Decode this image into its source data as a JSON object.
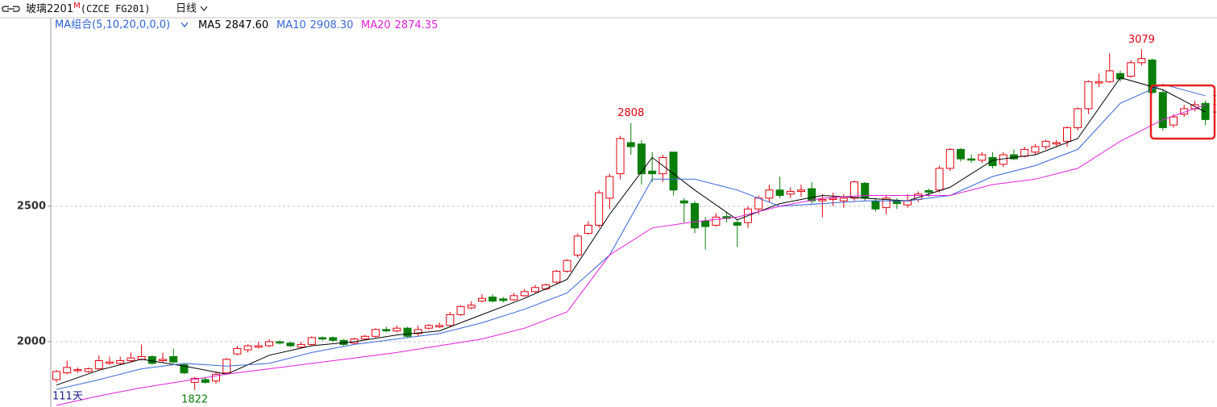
{
  "header": {
    "symbol": "玻璃2201",
    "badge": "M",
    "code": "(CZCE FG201)",
    "period": "日线"
  },
  "chart_data": {
    "type": "candlestick",
    "indicator": "MA组合(5,10,20,0,0,0)",
    "count_label": "111天",
    "open": [
      1860,
      1885,
      1893,
      1890,
      1900,
      1920,
      1920,
      1930,
      1935,
      1945,
      1930,
      1945,
      1915,
      1850,
      1860,
      1855,
      1885,
      1955,
      1970,
      1980,
      1985,
      2000,
      1995,
      1980,
      1990,
      2015,
      2015,
      2005,
      1995,
      2010,
      2020,
      2045,
      2040,
      2050,
      2030,
      2050,
      2055,
      2060,
      2100,
      2125,
      2150,
      2165,
      2158,
      2155,
      2170,
      2185,
      2195,
      2220,
      2260,
      2320,
      2400,
      2430,
      2530,
      2620,
      2735,
      2730,
      2630,
      2620,
      2700,
      2520,
      2510,
      2445,
      2430,
      2462,
      2440,
      2440,
      2490,
      2530,
      2560,
      2545,
      2555,
      2565,
      2520,
      2525,
      2520,
      2530,
      2585,
      2520,
      2495,
      2520,
      2505,
      2525,
      2558,
      2560,
      2640,
      2710,
      2675,
      2670,
      2680,
      2655,
      2690,
      2685,
      2700,
      2720,
      2730,
      2740,
      2790,
      2860,
      2955,
      2960,
      2990,
      2980,
      3030,
      3040,
      2920,
      2800,
      2840,
      2860,
      2880
    ],
    "high": [
      1895,
      1930,
      1905,
      1905,
      1950,
      1945,
      1945,
      1960,
      1990,
      1950,
      1960,
      1975,
      1920,
      1870,
      1870,
      1890,
      1940,
      1985,
      1990,
      2000,
      2010,
      2005,
      2000,
      2000,
      2020,
      2020,
      2020,
      2010,
      2015,
      2025,
      2050,
      2055,
      2060,
      2055,
      2060,
      2065,
      2070,
      2110,
      2135,
      2150,
      2175,
      2175,
      2165,
      2180,
      2195,
      2210,
      2215,
      2265,
      2305,
      2400,
      2445,
      2560,
      2620,
      2760,
      2808,
      2745,
      2700,
      2690,
      2700,
      2530,
      2520,
      2460,
      2475,
      2480,
      2450,
      2500,
      2540,
      2580,
      2610,
      2570,
      2580,
      2590,
      2545,
      2550,
      2545,
      2595,
      2590,
      2530,
      2540,
      2530,
      2545,
      2555,
      2565,
      2650,
      2715,
      2715,
      2690,
      2700,
      2700,
      2700,
      2710,
      2720,
      2730,
      2745,
      2745,
      2795,
      2865,
      2965,
      2990,
      3065,
      3000,
      3040,
      3079,
      3045,
      2930,
      2840,
      2875,
      2890,
      2890
    ],
    "low": [
      1850,
      1880,
      1885,
      1885,
      1895,
      1915,
      1915,
      1925,
      1930,
      1915,
      1925,
      1920,
      1880,
      1822,
      1845,
      1845,
      1880,
      1950,
      1960,
      1975,
      1980,
      1990,
      1980,
      1975,
      1985,
      2005,
      2000,
      1985,
      1990,
      2005,
      2015,
      2035,
      2035,
      2015,
      2020,
      2045,
      2050,
      2055,
      2095,
      2120,
      2145,
      2145,
      2145,
      2150,
      2165,
      2180,
      2190,
      2215,
      2255,
      2310,
      2395,
      2420,
      2490,
      2600,
      2690,
      2580,
      2590,
      2590,
      2540,
      2440,
      2400,
      2340,
      2425,
      2440,
      2350,
      2420,
      2470,
      2515,
      2530,
      2530,
      2535,
      2510,
      2460,
      2500,
      2495,
      2520,
      2520,
      2480,
      2470,
      2490,
      2495,
      2515,
      2535,
      2550,
      2630,
      2665,
      2660,
      2660,
      2640,
      2645,
      2670,
      2680,
      2690,
      2710,
      2720,
      2720,
      2780,
      2840,
      2940,
      2955,
      2960,
      2975,
      3020,
      2915,
      2780,
      2790,
      2830,
      2850,
      2800
    ],
    "close": [
      1890,
      1905,
      1897,
      1900,
      1930,
      1925,
      1930,
      1940,
      1945,
      1920,
      1935,
      1925,
      1885,
      1865,
      1850,
      1880,
      1935,
      1975,
      1985,
      1985,
      2000,
      1995,
      1985,
      1990,
      2015,
      2010,
      2005,
      1990,
      2010,
      2020,
      2045,
      2040,
      2050,
      2020,
      2045,
      2060,
      2060,
      2100,
      2130,
      2135,
      2160,
      2150,
      2152,
      2170,
      2185,
      2200,
      2210,
      2260,
      2300,
      2390,
      2430,
      2550,
      2610,
      2750,
      2720,
      2620,
      2620,
      2680,
      2560,
      2512,
      2420,
      2425,
      2460,
      2455,
      2430,
      2490,
      2530,
      2560,
      2540,
      2555,
      2560,
      2520,
      2525,
      2530,
      2530,
      2590,
      2530,
      2490,
      2530,
      2510,
      2520,
      2545,
      2552,
      2640,
      2710,
      2675,
      2670,
      2690,
      2650,
      2690,
      2675,
      2710,
      2720,
      2740,
      2735,
      2790,
      2860,
      2960,
      2960,
      3000,
      2970,
      3030,
      3045,
      2920,
      2790,
      2830,
      2860,
      2875,
      2820
    ],
    "up_color": "#e3000f",
    "down_color": "#0a7d0a",
    "series": [
      {
        "name": "MA5",
        "color": "#000000",
        "last": {
          "value": 2847.6,
          "label": "2847.60"
        },
        "x": [
          0,
          4,
          8,
          12,
          16,
          20,
          24,
          28,
          32,
          36,
          40,
          44,
          48,
          52,
          56,
          60,
          64,
          68,
          72,
          76,
          80,
          84,
          88,
          92,
          96,
          100,
          104,
          108
        ],
        "values": [
          1840,
          1895,
          1935,
          1910,
          1880,
          1950,
          1985,
          2000,
          2025,
          2040,
          2100,
          2160,
          2230,
          2470,
          2680,
          2560,
          2450,
          2510,
          2540,
          2530,
          2520,
          2570,
          2670,
          2690,
          2750,
          2975,
          2930,
          2848
        ]
      },
      {
        "name": "MA10",
        "color": "#3a66d6",
        "last": {
          "value": 2908.3,
          "label": "2908.30"
        },
        "x": [
          0,
          4,
          8,
          12,
          16,
          20,
          24,
          28,
          32,
          36,
          40,
          44,
          48,
          52,
          56,
          60,
          64,
          68,
          72,
          76,
          80,
          84,
          88,
          92,
          96,
          100,
          104,
          108
        ],
        "values": [
          1824,
          1860,
          1900,
          1920,
          1910,
          1920,
          1960,
          1990,
          2010,
          2030,
          2070,
          2120,
          2180,
          2320,
          2600,
          2600,
          2560,
          2500,
          2510,
          2520,
          2520,
          2540,
          2610,
          2650,
          2710,
          2880,
          2950,
          2908
        ]
      },
      {
        "name": "MA20",
        "color": "#e020d8",
        "last": {
          "value": 2874.35,
          "label": "2874.35"
        },
        "x": [
          0,
          4,
          8,
          12,
          16,
          20,
          24,
          28,
          32,
          36,
          40,
          44,
          48,
          52,
          56,
          60,
          64,
          68,
          72,
          76,
          80,
          84,
          88,
          92,
          96,
          100,
          104,
          108
        ],
        "values": [
          1765,
          1800,
          1830,
          1855,
          1880,
          1900,
          1920,
          1940,
          1960,
          1985,
          2010,
          2050,
          2110,
          2320,
          2420,
          2443,
          2460,
          2500,
          2530,
          2540,
          2540,
          2540,
          2580,
          2600,
          2640,
          2740,
          2820,
          2874
        ]
      }
    ],
    "ylim": [
      1759,
      3196
    ],
    "yticks": [
      2000,
      2500
    ],
    "grid": true
  }
}
